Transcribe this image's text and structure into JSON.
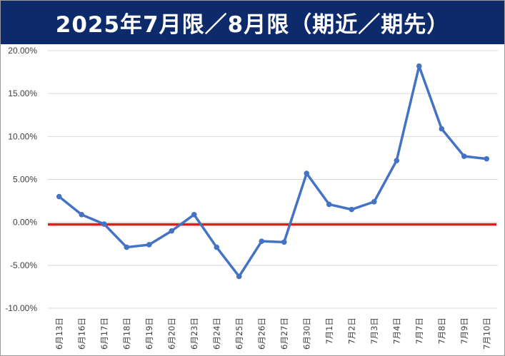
{
  "title": "2025年7月限／8月限（期近／期先）",
  "chart_data": {
    "type": "line",
    "title": "2025年7月限／8月限（期近／期先）",
    "xlabel": "",
    "ylabel": "",
    "ylim": [
      -0.1,
      0.2
    ],
    "yticks": [
      "20.00%",
      "15.00%",
      "10.00%",
      "5.00%",
      "0.00%",
      "-5.00%",
      "-10.00%"
    ],
    "ytick_values": [
      0.2,
      0.15,
      0.1,
      0.05,
      0.0,
      -0.05,
      -0.1
    ],
    "categories": [
      "6月13日",
      "6月16日",
      "6月17日",
      "6月18日",
      "6月19日",
      "6月20日",
      "6月23日",
      "6月24日",
      "6月25日",
      "6月26日",
      "6月27日",
      "6月30日",
      "7月1日",
      "7月2日",
      "7月3日",
      "7月4日",
      "7月7日",
      "7月8日",
      "7月9日",
      "7月10日"
    ],
    "series": [
      {
        "values": [
          0.03,
          0.009,
          -0.002,
          -0.029,
          -0.026,
          -0.01,
          0.009,
          -0.029,
          -0.063,
          -0.022,
          -0.023,
          0.057,
          0.021,
          0.015,
          0.024,
          0.072,
          0.182,
          0.109,
          0.077,
          0.074
        ],
        "color": "#4472c4"
      }
    ],
    "reference_line": {
      "value": 0.0,
      "color": "#e41a1c"
    },
    "grid": true,
    "legend": "none"
  }
}
